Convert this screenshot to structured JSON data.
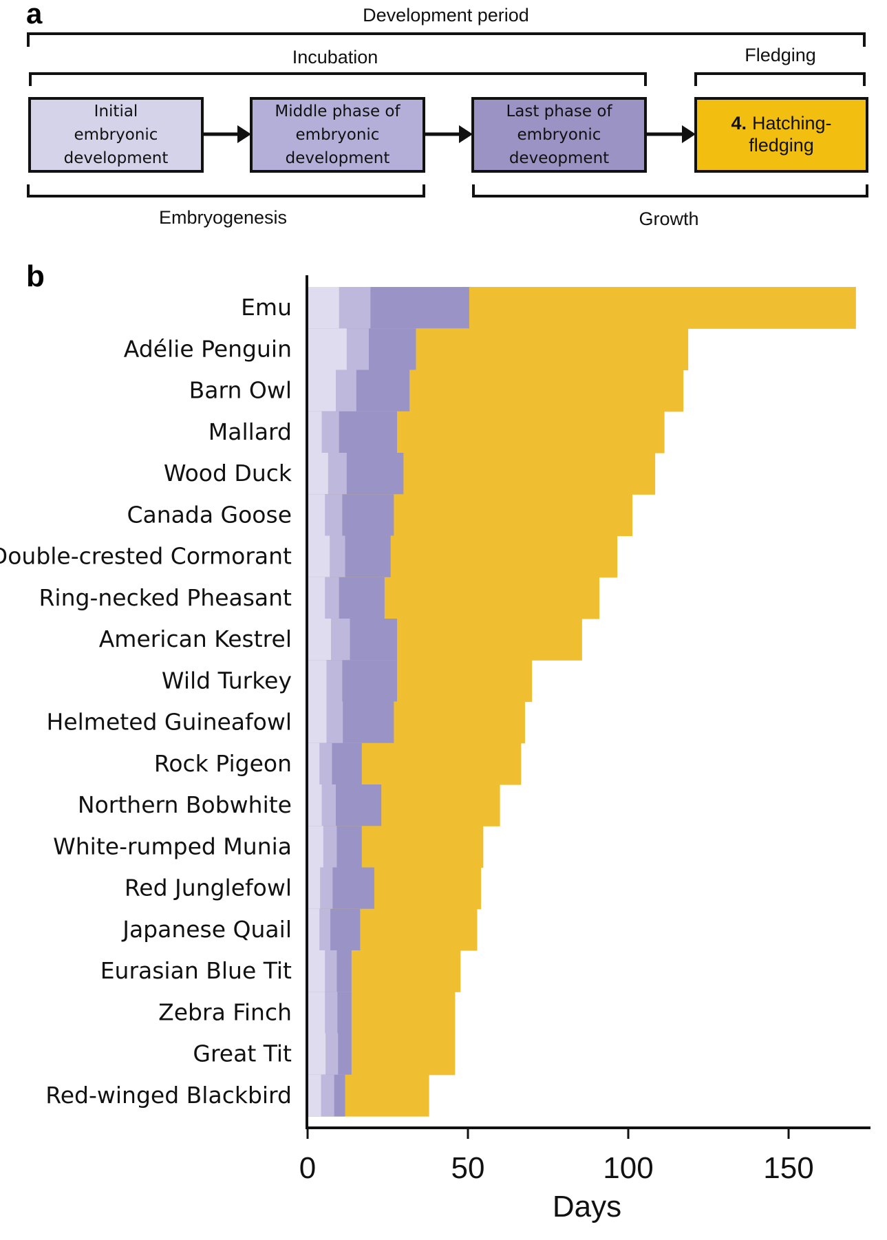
{
  "panel_a": {
    "panel_letter": "a",
    "development_period": "Development  period",
    "incubation": "Incubation",
    "fledging": "Fledging",
    "embryogenesis": "Embryogenesis",
    "growth": "Growth",
    "boxes": [
      {
        "lines": [
          "Initial",
          "embryonic",
          "development"
        ],
        "color": "#d5d3ea"
      },
      {
        "lines": [
          "Middle phase of",
          "embryonic",
          "development"
        ],
        "color": "#b3afd8"
      },
      {
        "lines": [
          "Last phase of",
          "embryonic",
          "deveopment"
        ],
        "color": "#9a93c4"
      },
      {
        "number": "4.",
        "lines": [
          "Hatching-",
          "fledging"
        ],
        "color": "#f2bf10"
      }
    ]
  },
  "chart_data": {
    "type": "bar",
    "orientation": "horizontal-stacked-cumulative",
    "panel_letter": "b",
    "xlabel": "Days",
    "xlim": [
      0,
      175
    ],
    "xticks": [
      "0",
      "50",
      "100",
      "150"
    ],
    "grid": false,
    "stage_colors": [
      "#dedcee",
      "#bdb8dc",
      "#9a94c6",
      "#f0bf31"
    ],
    "stages": [
      "Initial embryonic development",
      "Middle phase of embryonic development",
      "Last phase of embryonic development",
      "Hatching-fledging"
    ],
    "categories": [
      "Emu",
      "Adélie Penguin",
      "Barn Owl",
      "Mallard",
      "Wood Duck",
      "Canada Goose",
      "Double-crested Cormorant",
      "Ring-necked Pheasant",
      "American Kestrel",
      "Wild Turkey",
      "Helmeted Guineafowl",
      "Rock Pigeon",
      "Northern Bobwhite",
      "White-rumped Munia",
      "Red Junglefowl",
      "Japanese Quail",
      "Eurasian Blue Tit",
      "Zebra Finch",
      "Great Tit",
      "Red-winged Blackbird"
    ],
    "stage_end_days": [
      [
        9.8,
        19.6,
        50.4,
        171
      ],
      [
        12.2,
        19.1,
        33.8,
        118.7
      ],
      [
        8.8,
        15.2,
        31.8,
        117.2
      ],
      [
        4.4,
        9.8,
        27.9,
        111.3
      ],
      [
        6.4,
        12.2,
        29.9,
        108.4
      ],
      [
        5.4,
        10.8,
        26.9,
        101.3
      ],
      [
        6.9,
        11.7,
        25.9,
        96.6
      ],
      [
        5.4,
        9.8,
        24.0,
        91.0
      ],
      [
        7.3,
        13.2,
        27.9,
        85.6
      ],
      [
        5.9,
        10.8,
        27.9,
        70.0
      ],
      [
        5.9,
        11.0,
        26.9,
        67.8
      ],
      [
        3.7,
        7.6,
        16.9,
        66.6
      ],
      [
        4.4,
        8.8,
        23.0,
        60.0
      ],
      [
        4.9,
        9.1,
        16.9,
        54.8
      ],
      [
        3.9,
        7.8,
        20.8,
        54.1
      ],
      [
        3.7,
        7.1,
        16.4,
        52.9
      ],
      [
        5.4,
        9.1,
        13.7,
        47.7
      ],
      [
        5.4,
        9.3,
        13.7,
        46.0
      ],
      [
        5.6,
        9.5,
        13.7,
        46.0
      ],
      [
        4.2,
        8.3,
        11.7,
        37.9
      ]
    ]
  }
}
